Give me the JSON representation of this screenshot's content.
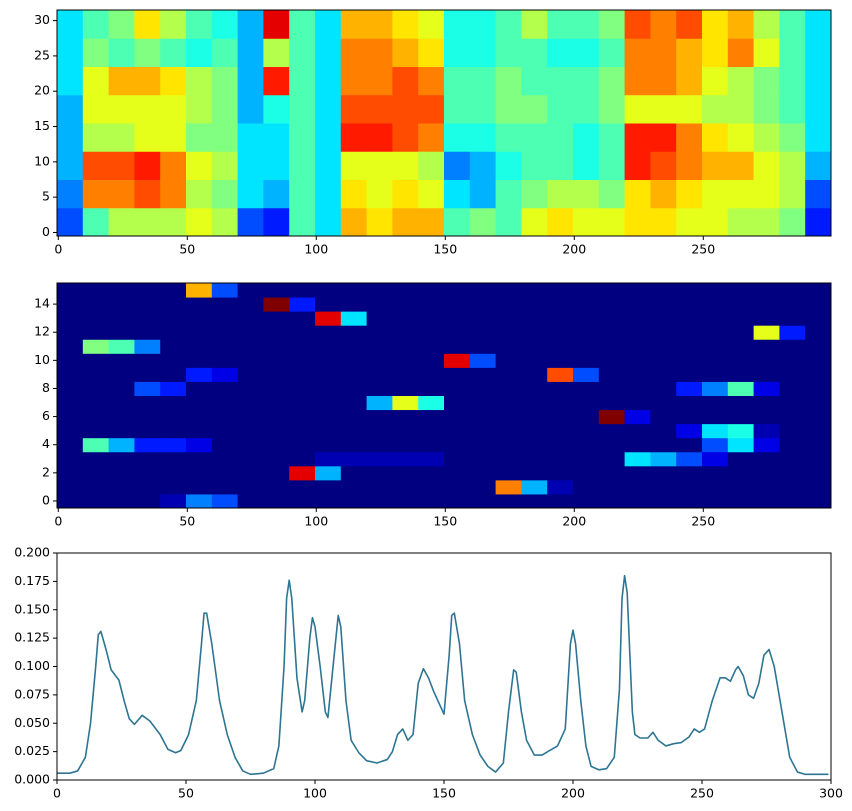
{
  "chart_data": [
    {
      "type": "heatmap",
      "colormap": "jet",
      "xlim": [
        -0.5,
        299.5
      ],
      "ylim": [
        -0.5,
        31.5
      ],
      "xticks": [
        0,
        50,
        100,
        150,
        200,
        250
      ],
      "yticks": [
        0,
        5,
        10,
        15,
        20,
        25,
        30
      ],
      "z": [
        [
          0.2,
          0.45,
          0.55,
          0.55,
          0.55,
          0.6,
          0.55,
          0.2,
          0.15,
          0.45,
          0.35,
          0.7,
          0.65,
          0.7,
          0.7,
          0.45,
          0.5,
          0.45,
          0.6,
          0.65,
          0.6,
          0.6,
          0.65,
          0.65,
          0.6,
          0.6,
          0.55,
          0.55,
          0.5,
          0.15
        ],
        [
          0.25,
          0.75,
          0.75,
          0.8,
          0.75,
          0.55,
          0.5,
          0.35,
          0.3,
          0.45,
          0.35,
          0.65,
          0.6,
          0.65,
          0.6,
          0.35,
          0.3,
          0.45,
          0.5,
          0.55,
          0.55,
          0.5,
          0.65,
          0.7,
          0.65,
          0.6,
          0.6,
          0.6,
          0.55,
          0.2
        ],
        [
          0.3,
          0.8,
          0.8,
          0.85,
          0.75,
          0.6,
          0.55,
          0.35,
          0.35,
          0.45,
          0.35,
          0.6,
          0.6,
          0.6,
          0.55,
          0.25,
          0.3,
          0.4,
          0.45,
          0.45,
          0.4,
          0.45,
          0.85,
          0.8,
          0.75,
          0.7,
          0.7,
          0.6,
          0.55,
          0.3
        ],
        [
          0.3,
          0.55,
          0.55,
          0.6,
          0.6,
          0.5,
          0.5,
          0.35,
          0.35,
          0.45,
          0.35,
          0.85,
          0.85,
          0.8,
          0.75,
          0.4,
          0.4,
          0.45,
          0.45,
          0.45,
          0.4,
          0.45,
          0.85,
          0.85,
          0.75,
          0.65,
          0.6,
          0.55,
          0.5,
          0.35
        ],
        [
          0.3,
          0.6,
          0.6,
          0.6,
          0.6,
          0.55,
          0.5,
          0.3,
          0.4,
          0.45,
          0.35,
          0.8,
          0.8,
          0.8,
          0.8,
          0.45,
          0.45,
          0.5,
          0.5,
          0.45,
          0.45,
          0.5,
          0.6,
          0.6,
          0.6,
          0.55,
          0.55,
          0.5,
          0.45,
          0.35
        ],
        [
          0.35,
          0.6,
          0.7,
          0.7,
          0.65,
          0.55,
          0.5,
          0.3,
          0.85,
          0.45,
          0.35,
          0.75,
          0.75,
          0.8,
          0.75,
          0.45,
          0.45,
          0.5,
          0.45,
          0.45,
          0.45,
          0.5,
          0.75,
          0.75,
          0.7,
          0.6,
          0.55,
          0.5,
          0.45,
          0.35
        ],
        [
          0.35,
          0.5,
          0.45,
          0.5,
          0.45,
          0.4,
          0.45,
          0.3,
          0.55,
          0.45,
          0.35,
          0.75,
          0.75,
          0.7,
          0.65,
          0.4,
          0.4,
          0.45,
          0.45,
          0.4,
          0.4,
          0.45,
          0.75,
          0.75,
          0.7,
          0.65,
          0.75,
          0.6,
          0.45,
          0.35
        ],
        [
          0.35,
          0.45,
          0.5,
          0.65,
          0.55,
          0.45,
          0.4,
          0.3,
          0.9,
          0.45,
          0.35,
          0.7,
          0.7,
          0.65,
          0.6,
          0.4,
          0.4,
          0.45,
          0.55,
          0.45,
          0.45,
          0.5,
          0.8,
          0.75,
          0.8,
          0.65,
          0.7,
          0.55,
          0.45,
          0.35
        ]
      ]
    },
    {
      "type": "heatmap",
      "colormap": "jet",
      "xlim": [
        -0.5,
        299.5
      ],
      "ylim": [
        -0.5,
        15.5
      ],
      "xticks": [
        0,
        50,
        100,
        150,
        200,
        250
      ],
      "yticks": [
        0,
        2,
        4,
        6,
        8,
        10,
        12,
        14
      ],
      "z": [
        [
          0,
          0,
          0,
          0,
          0.05,
          0.25,
          0.2,
          0,
          0,
          0,
          0,
          0,
          0,
          0,
          0,
          0,
          0,
          0,
          0,
          0,
          0,
          0,
          0,
          0,
          0,
          0,
          0,
          0,
          0,
          0
        ],
        [
          0,
          0,
          0,
          0,
          0,
          0,
          0,
          0,
          0,
          0,
          0,
          0,
          0,
          0,
          0,
          0,
          0,
          0.75,
          0.3,
          0.05,
          0,
          0,
          0,
          0,
          0,
          0,
          0,
          0,
          0,
          0
        ],
        [
          0,
          0,
          0,
          0,
          0,
          0,
          0,
          0,
          0,
          0.9,
          0.3,
          0,
          0,
          0,
          0,
          0,
          0,
          0,
          0,
          0,
          0,
          0,
          0,
          0,
          0,
          0,
          0,
          0,
          0,
          0
        ],
        [
          0,
          0,
          0,
          0,
          0,
          0,
          0,
          0,
          0,
          0,
          0.05,
          0.05,
          0.05,
          0.05,
          0.05,
          0,
          0,
          0,
          0,
          0,
          0,
          0,
          0.35,
          0.3,
          0.2,
          0.1,
          0,
          0,
          0,
          0
        ],
        [
          0,
          0.45,
          0.3,
          0.15,
          0.15,
          0.1,
          0,
          0,
          0,
          0,
          0,
          0,
          0,
          0,
          0,
          0,
          0,
          0,
          0,
          0,
          0,
          0,
          0,
          0,
          0,
          0.2,
          0.35,
          0.1,
          0,
          0
        ],
        [
          0,
          0,
          0,
          0,
          0,
          0,
          0,
          0,
          0,
          0,
          0,
          0,
          0,
          0,
          0,
          0,
          0,
          0,
          0,
          0,
          0,
          0,
          0,
          0,
          0.1,
          0.35,
          0.4,
          0.05,
          0,
          0
        ],
        [
          0,
          0,
          0,
          0,
          0,
          0,
          0,
          0,
          0,
          0,
          0,
          0,
          0,
          0,
          0,
          0,
          0,
          0,
          0,
          0,
          0,
          1.0,
          0.1,
          0,
          0,
          0,
          0,
          0,
          0,
          0
        ],
        [
          0,
          0,
          0,
          0,
          0,
          0,
          0,
          0,
          0,
          0,
          0,
          0,
          0.3,
          0.6,
          0.4,
          0,
          0,
          0,
          0,
          0,
          0,
          0,
          0,
          0,
          0,
          0,
          0,
          0,
          0,
          0
        ],
        [
          0,
          0,
          0,
          0.2,
          0.15,
          0,
          0,
          0,
          0,
          0,
          0,
          0,
          0,
          0,
          0,
          0,
          0,
          0,
          0,
          0,
          0,
          0,
          0,
          0,
          0.15,
          0.25,
          0.45,
          0.1,
          0,
          0
        ],
        [
          0,
          0,
          0,
          0,
          0,
          0.15,
          0.1,
          0,
          0,
          0,
          0,
          0,
          0,
          0,
          0,
          0,
          0,
          0,
          0,
          0.8,
          0.2,
          0,
          0,
          0,
          0,
          0,
          0,
          0,
          0,
          0
        ],
        [
          0,
          0,
          0,
          0,
          0,
          0,
          0,
          0,
          0,
          0,
          0,
          0,
          0,
          0,
          0,
          0.9,
          0.2,
          0,
          0,
          0,
          0,
          0,
          0,
          0,
          0,
          0,
          0,
          0,
          0,
          0
        ],
        [
          0,
          0.5,
          0.45,
          0.25,
          0,
          0,
          0,
          0,
          0,
          0,
          0,
          0,
          0,
          0,
          0,
          0,
          0,
          0,
          0,
          0,
          0,
          0,
          0,
          0,
          0,
          0,
          0,
          0,
          0,
          0
        ],
        [
          0,
          0,
          0,
          0,
          0,
          0,
          0,
          0,
          0,
          0,
          0,
          0,
          0,
          0,
          0,
          0,
          0,
          0,
          0,
          0,
          0,
          0,
          0,
          0,
          0,
          0,
          0,
          0.6,
          0.15,
          0
        ],
        [
          0,
          0,
          0,
          0,
          0,
          0,
          0,
          0,
          0,
          0,
          0.9,
          0.35,
          0,
          0,
          0,
          0,
          0,
          0,
          0,
          0,
          0,
          0,
          0,
          0,
          0,
          0,
          0,
          0,
          0,
          0
        ],
        [
          0,
          0,
          0,
          0,
          0,
          0,
          0,
          0,
          1.0,
          0.15,
          0,
          0,
          0,
          0,
          0,
          0,
          0,
          0,
          0,
          0,
          0,
          0,
          0,
          0,
          0,
          0,
          0,
          0,
          0,
          0
        ],
        [
          0,
          0,
          0,
          0,
          0,
          0.7,
          0.2,
          0,
          0,
          0,
          0,
          0,
          0,
          0,
          0,
          0,
          0,
          0,
          0,
          0,
          0,
          0,
          0,
          0,
          0,
          0,
          0,
          0,
          0,
          0
        ]
      ]
    },
    {
      "type": "line",
      "color": "#2e7593",
      "xlim": [
        0,
        300
      ],
      "ylim": [
        0,
        0.2
      ],
      "xticks": [
        0,
        50,
        100,
        150,
        200,
        250,
        300
      ],
      "yticks": [
        {
          "value": 0,
          "label": "0.000"
        },
        {
          "value": 0.025,
          "label": "0.025"
        },
        {
          "value": 0.05,
          "label": "0.050"
        },
        {
          "value": 0.075,
          "label": "0.075"
        },
        {
          "value": 0.1,
          "label": "0.100"
        },
        {
          "value": 0.125,
          "label": "0.125"
        },
        {
          "value": 0.15,
          "label": "0.150"
        },
        {
          "value": 0.175,
          "label": "0.175"
        },
        {
          "value": 0.2,
          "label": "0.200"
        }
      ],
      "x": [
        0,
        5,
        8,
        11,
        13,
        15,
        16,
        17,
        19,
        21,
        24,
        26,
        28,
        30,
        33,
        36,
        40,
        43,
        46,
        48,
        51,
        54,
        56,
        57,
        58,
        60,
        63,
        66,
        69,
        72,
        75,
        80,
        84,
        86,
        88,
        89,
        90,
        91,
        93,
        95,
        96,
        98,
        99,
        100,
        102,
        104,
        105,
        107,
        109,
        110,
        112,
        114,
        117,
        120,
        124,
        128,
        130,
        132,
        134,
        136,
        138,
        140,
        142,
        144,
        146,
        148,
        150,
        152,
        153,
        154,
        156,
        158,
        161,
        164,
        167,
        170,
        173,
        175,
        177,
        178,
        180,
        182,
        185,
        188,
        191,
        194,
        197,
        199,
        200,
        201,
        203,
        205,
        207,
        210,
        213,
        216,
        218,
        219,
        220,
        221,
        223,
        224,
        226,
        229,
        231,
        233,
        236,
        239,
        242,
        245,
        247,
        249,
        251,
        254,
        257,
        259,
        261,
        263,
        264,
        266,
        268,
        270,
        272,
        274,
        276,
        278,
        281,
        284,
        287,
        290,
        295,
        299
      ],
      "values": [
        0.006,
        0.006,
        0.008,
        0.02,
        0.05,
        0.1,
        0.128,
        0.131,
        0.115,
        0.097,
        0.088,
        0.07,
        0.054,
        0.049,
        0.057,
        0.052,
        0.04,
        0.027,
        0.024,
        0.026,
        0.04,
        0.07,
        0.12,
        0.147,
        0.147,
        0.12,
        0.07,
        0.04,
        0.02,
        0.008,
        0.005,
        0.006,
        0.01,
        0.03,
        0.1,
        0.16,
        0.176,
        0.16,
        0.09,
        0.06,
        0.07,
        0.125,
        0.143,
        0.135,
        0.1,
        0.06,
        0.055,
        0.1,
        0.145,
        0.135,
        0.07,
        0.035,
        0.024,
        0.017,
        0.015,
        0.018,
        0.025,
        0.04,
        0.045,
        0.035,
        0.04,
        0.085,
        0.098,
        0.09,
        0.078,
        0.068,
        0.058,
        0.11,
        0.145,
        0.147,
        0.12,
        0.07,
        0.04,
        0.022,
        0.012,
        0.007,
        0.015,
        0.06,
        0.097,
        0.095,
        0.06,
        0.035,
        0.022,
        0.022,
        0.026,
        0.03,
        0.045,
        0.12,
        0.132,
        0.12,
        0.07,
        0.03,
        0.012,
        0.009,
        0.01,
        0.02,
        0.08,
        0.16,
        0.18,
        0.165,
        0.06,
        0.04,
        0.037,
        0.037,
        0.042,
        0.035,
        0.03,
        0.032,
        0.033,
        0.038,
        0.045,
        0.042,
        0.045,
        0.07,
        0.09,
        0.09,
        0.087,
        0.097,
        0.1,
        0.092,
        0.075,
        0.072,
        0.085,
        0.11,
        0.115,
        0.1,
        0.06,
        0.02,
        0.007,
        0.005,
        0.005,
        0.005
      ]
    }
  ]
}
